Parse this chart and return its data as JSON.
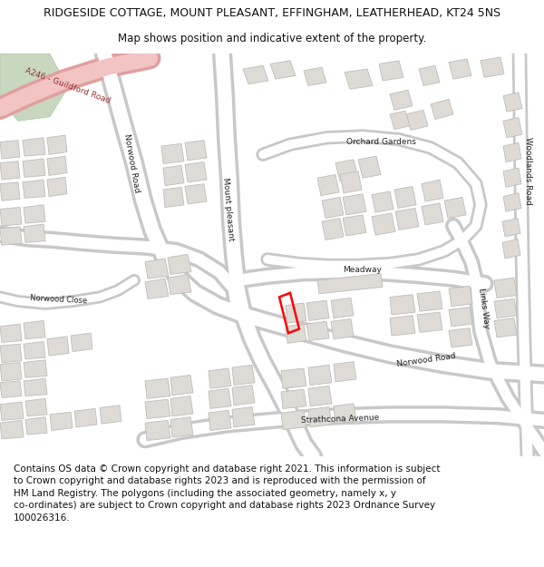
{
  "title_line1": "RIDGESIDE COTTAGE, MOUNT PLEASANT, EFFINGHAM, LEATHERHEAD, KT24 5NS",
  "title_line2": "Map shows position and indicative extent of the property.",
  "footer_text": "Contains OS data © Crown copyright and database right 2021. This information is subject\nto Crown copyright and database rights 2023 and is reproduced with the permission of\nHM Land Registry. The polygons (including the associated geometry, namely x, y\nco-ordinates) are subject to Crown copyright and database rights 2023 Ordnance Survey\n100026316.",
  "bg_color": "#ffffff",
  "map_bg": "#f2f0ee",
  "road_fill": "#ffffff",
  "road_stroke": "#c8c8c8",
  "a_road_fill": "#f2c4c4",
  "a_road_stroke": "#e0a0a0",
  "green_fill": "#c8d8c0",
  "building_fill": "#dedad6",
  "building_stroke": "#c0bcb8",
  "plot_stroke": "#ff0000",
  "title_fontsize": 9.0,
  "subtitle_fontsize": 8.5,
  "footer_fontsize": 7.5
}
